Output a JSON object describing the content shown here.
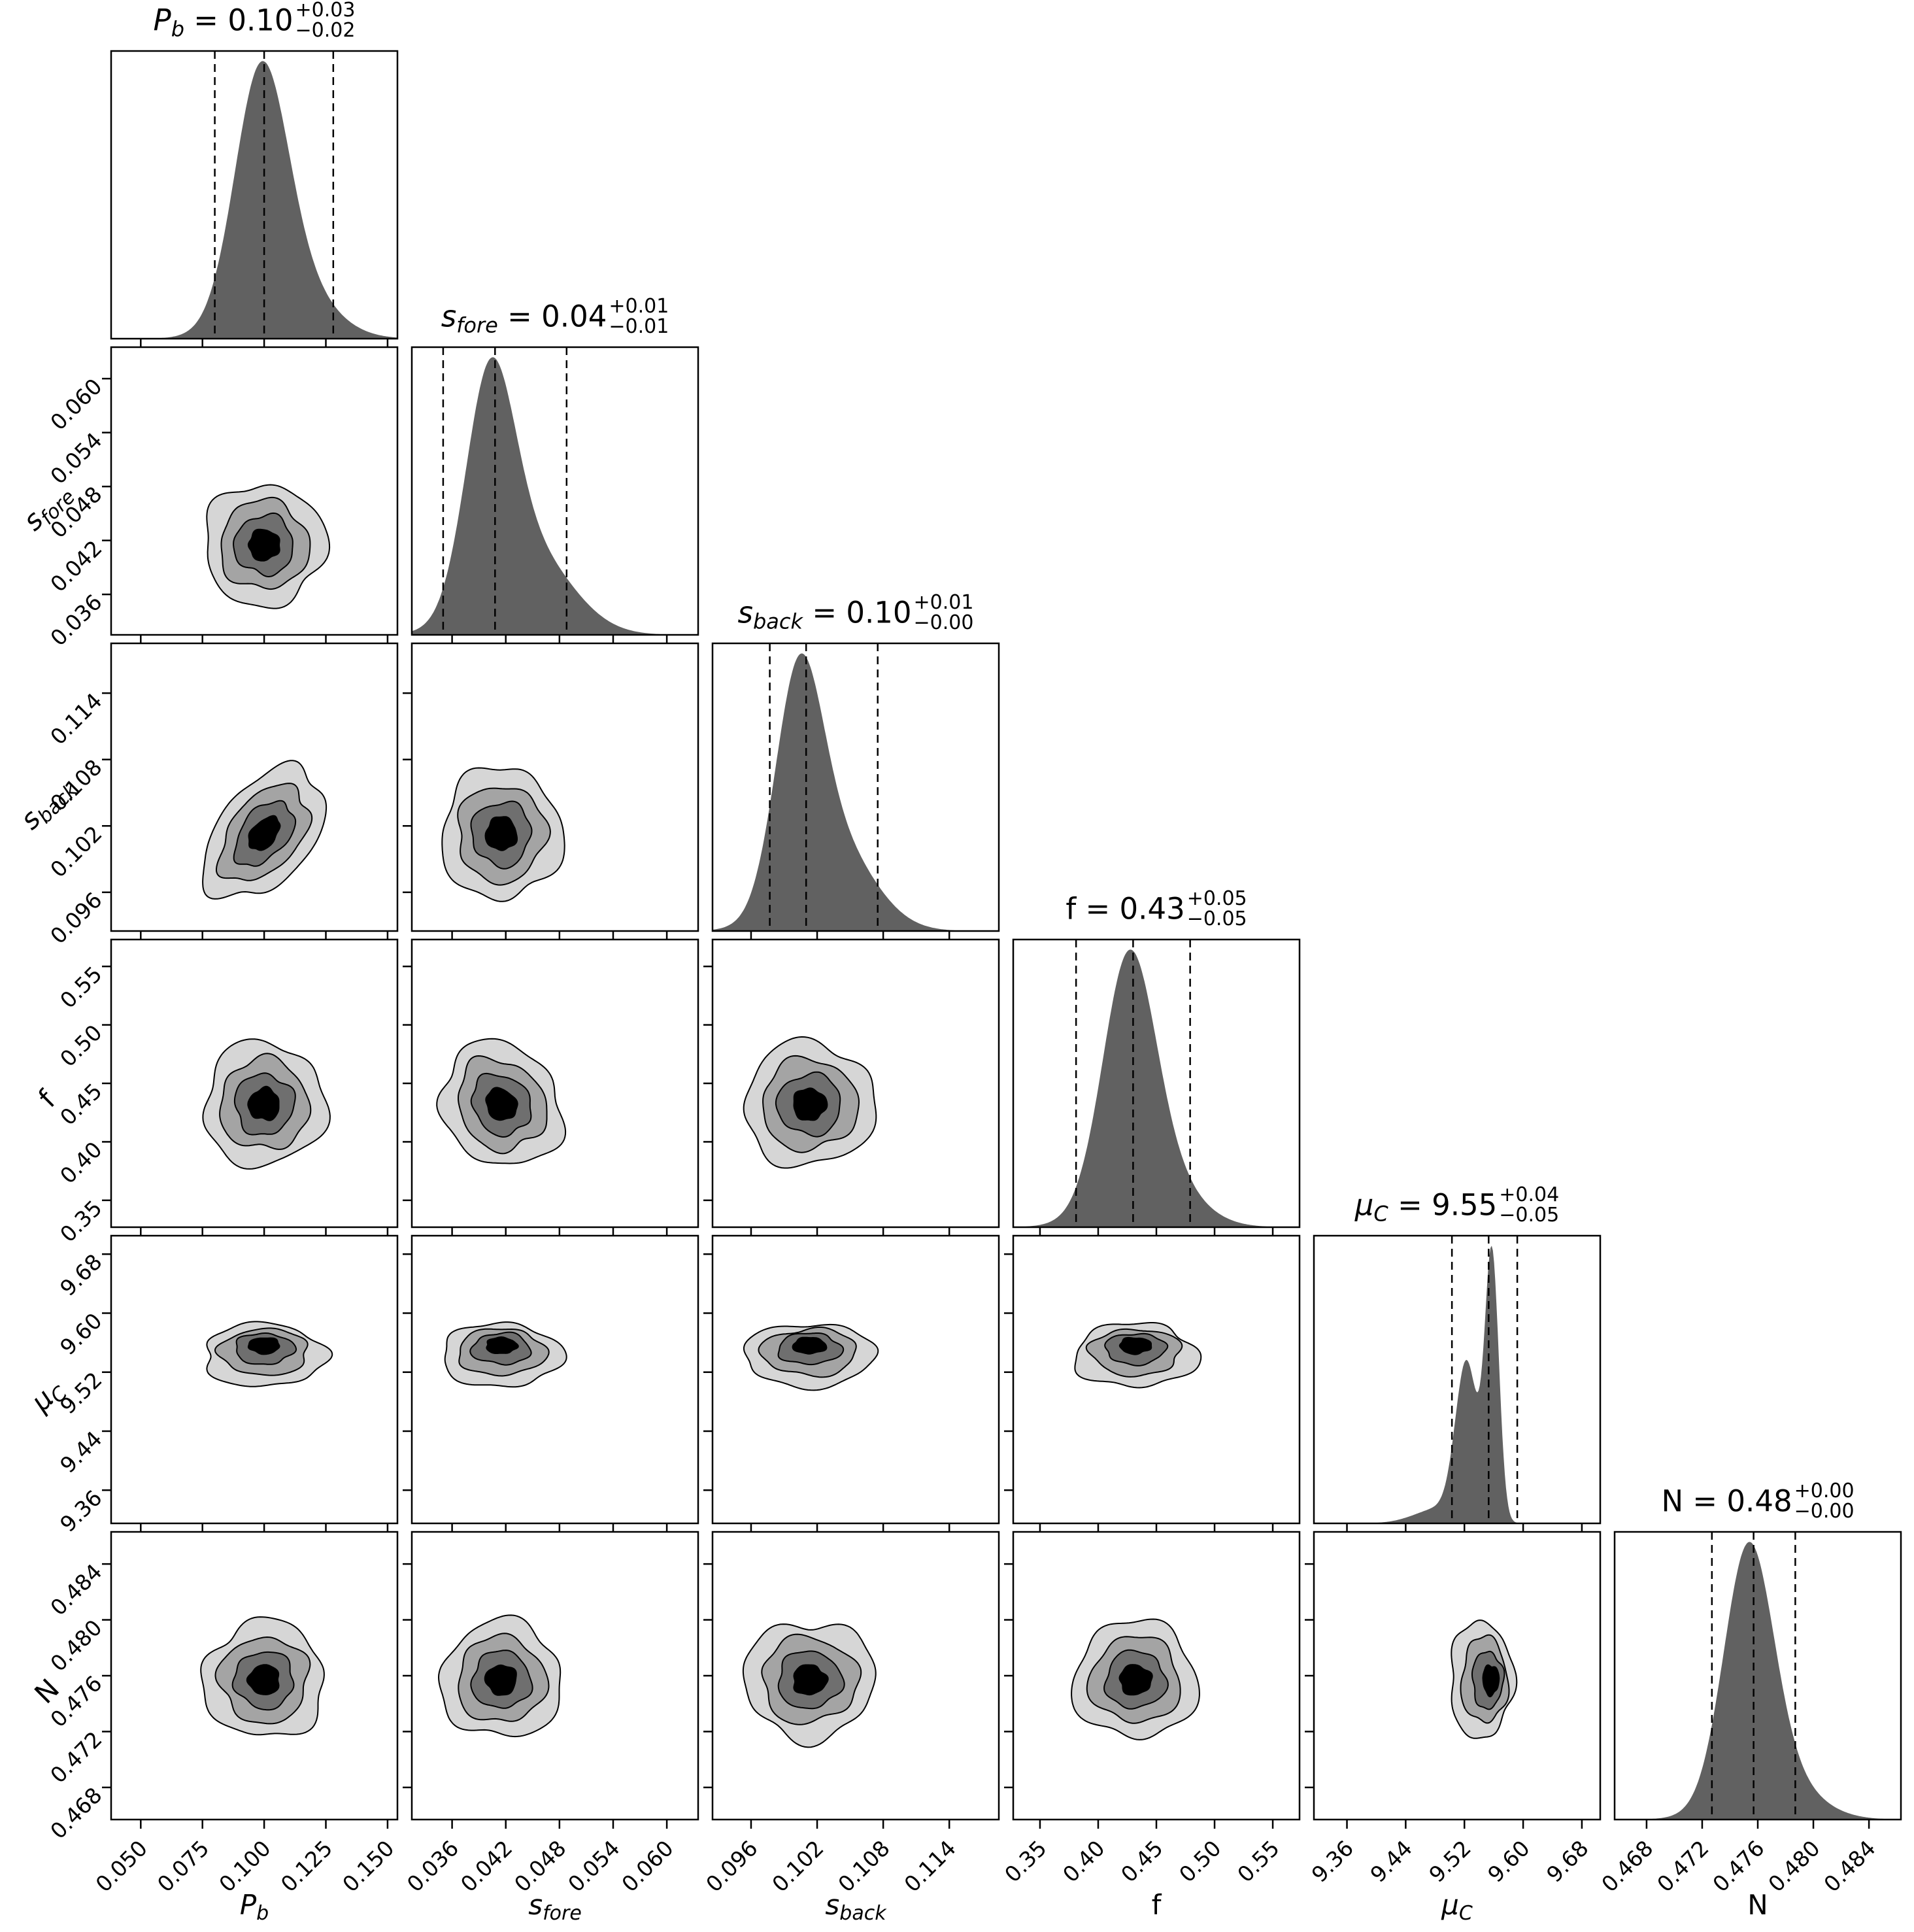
{
  "chart_data": {
    "type": "corner",
    "description": "Posterior corner plot: 1D marginal histograms on the diagonal with 16/50/84 percentile dashed lines, filled 2D contour (4 grayscale levels) joint distributions below the diagonal",
    "contour_levels_sigma": [
      2.05,
      1.5,
      1.0,
      0.52
    ],
    "style": {
      "hist_fill": "#616161",
      "contour_fills": [
        "#d6d6d6",
        "#a4a4a4",
        "#6f6f6f",
        "#000000"
      ],
      "line_color": "#000000",
      "background": "#ffffff"
    },
    "correlations": {
      "Pb|sback": -0.45,
      "sfore|f": 0.15
    },
    "parameters": [
      {
        "id": "Pb",
        "name": "P",
        "subscript": "b",
        "italic": true,
        "title_value": "0.10",
        "title_plus": "+0.03",
        "title_minus": "−0.02",
        "range": [
          0.038,
          0.154
        ],
        "ticks": [
          0.05,
          0.075,
          0.1,
          0.125,
          0.15
        ],
        "tick_labels": [
          "0.050",
          "0.075",
          "0.100",
          "0.125",
          "0.150"
        ],
        "quantiles": [
          0.08,
          0.1,
          0.128
        ],
        "center": 0.1,
        "sigma": 0.012,
        "core_shift": 0,
        "density": [
          {
            "mu": 0.0985,
            "s": 0.0105,
            "w": 1
          },
          {
            "mu": 0.108,
            "s": 0.016,
            "w": 0.3
          }
        ]
      },
      {
        "id": "sfore",
        "name": "s",
        "subscript": "fore",
        "italic": true,
        "title_value": "0.04",
        "title_plus": "+0.01",
        "title_minus": "−0.01",
        "range": [
          0.0315,
          0.0635
        ],
        "ticks": [
          0.036,
          0.042,
          0.048,
          0.054,
          0.06
        ],
        "tick_labels": [
          "0.036",
          "0.042",
          "0.048",
          "0.054",
          "0.060"
        ],
        "quantiles": [
          0.035,
          0.0408,
          0.0488
        ],
        "center": 0.0415,
        "sigma": 0.0033,
        "core_shift": 0,
        "density": [
          {
            "mu": 0.0402,
            "s": 0.0027,
            "w": 1
          },
          {
            "mu": 0.0443,
            "s": 0.0048,
            "w": 0.4
          }
        ]
      },
      {
        "id": "sback",
        "name": "s",
        "subscript": "back",
        "italic": true,
        "title_value": "0.10",
        "title_plus": "+0.01",
        "title_minus": "−0.00",
        "range": [
          0.0925,
          0.1185
        ],
        "ticks": [
          0.096,
          0.102,
          0.108,
          0.114
        ],
        "tick_labels": [
          "0.096",
          "0.102",
          "0.108",
          "0.114"
        ],
        "quantiles": [
          0.0977,
          0.101,
          0.1075
        ],
        "center": 0.1013,
        "sigma": 0.0029,
        "core_shift": 0,
        "density": [
          {
            "mu": 0.1003,
            "s": 0.0021,
            "w": 1
          },
          {
            "mu": 0.1032,
            "s": 0.0036,
            "w": 0.45
          }
        ]
      },
      {
        "id": "f",
        "name": "f",
        "subscript": "",
        "italic": false,
        "title_value": "0.43",
        "title_plus": "+0.05",
        "title_minus": "−0.05",
        "range": [
          0.327,
          0.573
        ],
        "ticks": [
          0.35,
          0.4,
          0.45,
          0.5,
          0.55
        ],
        "tick_labels": [
          "0.35",
          "0.40",
          "0.45",
          "0.50",
          "0.55"
        ],
        "quantiles": [
          0.381,
          0.43,
          0.479
        ],
        "center": 0.432,
        "sigma": 0.026,
        "core_shift": 0,
        "density": [
          {
            "mu": 0.426,
            "s": 0.022,
            "w": 1
          },
          {
            "mu": 0.442,
            "s": 0.034,
            "w": 0.32
          }
        ]
      },
      {
        "id": "muC",
        "name": "μ",
        "subscript": "C",
        "italic": true,
        "title_value": "9.55",
        "title_plus": "+0.04",
        "title_minus": "−0.05",
        "range": [
          9.315,
          9.705
        ],
        "ticks": [
          9.36,
          9.44,
          9.52,
          9.6,
          9.68
        ],
        "tick_labels": [
          "9.36",
          "9.44",
          "9.52",
          "9.60",
          "9.68"
        ],
        "quantiles": [
          9.503,
          9.553,
          9.592
        ],
        "center": 9.543,
        "sigma": 0.021,
        "core_shift": 0.013,
        "density": [
          {
            "mu": 9.523,
            "s": 0.015,
            "w": 0.58
          },
          {
            "mu": 9.5575,
            "s": 0.0095,
            "w": 1
          },
          {
            "mu": 9.49,
            "s": 0.035,
            "w": 0.06
          }
        ]
      },
      {
        "id": "N",
        "name": "N",
        "subscript": "",
        "italic": false,
        "title_value": "0.48",
        "title_plus": "+0.00",
        "title_minus": "−0.00",
        "range": [
          0.4657,
          0.4863
        ],
        "ticks": [
          0.468,
          0.472,
          0.476,
          0.48,
          0.484
        ],
        "tick_labels": [
          "0.468",
          "0.472",
          "0.476",
          "0.480",
          "0.484"
        ],
        "quantiles": [
          0.4727,
          0.4757,
          0.4787
        ],
        "center": 0.4757,
        "sigma": 0.00205,
        "core_shift": 0,
        "density": [
          {
            "mu": 0.4753,
            "s": 0.00175,
            "w": 1
          },
          {
            "mu": 0.4768,
            "s": 0.0028,
            "w": 0.22
          }
        ]
      }
    ]
  }
}
